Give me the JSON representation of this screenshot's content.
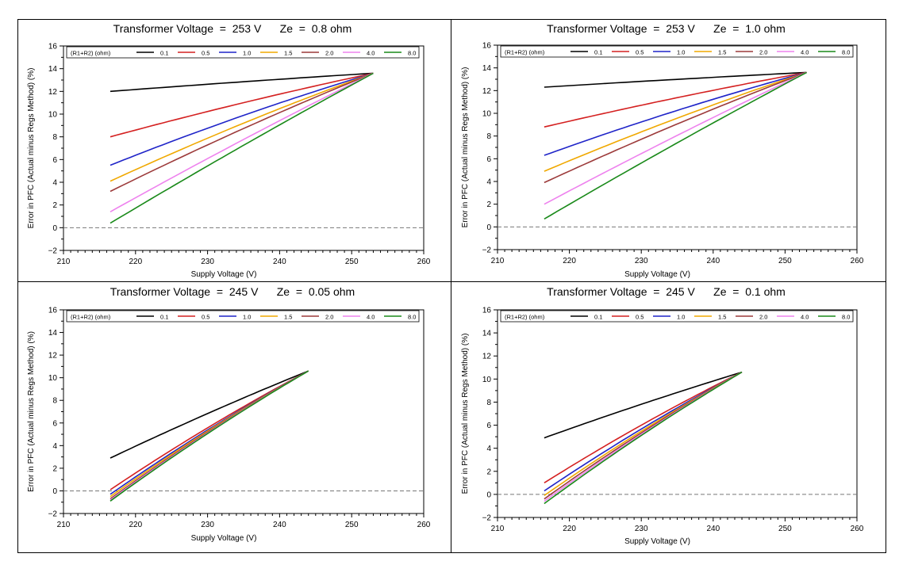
{
  "legend": {
    "title": "(R1+R2) (ohm)",
    "colors": [
      "#000000",
      "#d42020",
      "#1f24c8",
      "#f0a800",
      "#9c3a3a",
      "#ee82ee",
      "#1a8a1a"
    ]
  },
  "chart_data": [
    {
      "type": "line",
      "title": "Transformer Voltage  =  253 V      Ze  =  0.8 ohm",
      "xlabel": "Supply Voltage (V)",
      "ylabel": "Error in PFC (Actual minus Regs Method) (%)",
      "xlim": [
        210,
        260
      ],
      "ylim": [
        -2,
        16
      ],
      "xticks": [
        210,
        220,
        230,
        240,
        250,
        260
      ],
      "yticks": [
        -2,
        0,
        2,
        4,
        6,
        8,
        10,
        12,
        14,
        16
      ],
      "reference_line": 0,
      "x_start": 216.5,
      "x_end": 253,
      "y_end": 13.6,
      "series": [
        {
          "name": "0.1",
          "start": 12.0,
          "curve": 0.1
        },
        {
          "name": "0.5",
          "start": 8.0,
          "curve": 0.12
        },
        {
          "name": "1.0",
          "start": 5.5,
          "curve": 0.14
        },
        {
          "name": "1.5",
          "start": 4.1,
          "curve": 0.12
        },
        {
          "name": "2.0",
          "start": 3.2,
          "curve": 0.1
        },
        {
          "name": "4.0",
          "start": 1.4,
          "curve": 0.06
        },
        {
          "name": "8.0",
          "start": 0.4,
          "curve": 0.05
        }
      ]
    },
    {
      "type": "line",
      "title": "Transformer Voltage  =  253 V      Ze  =  1.0 ohm",
      "xlabel": "Supply Voltage (V)",
      "ylabel": "Error in PFC (Actual minus Regs Method) (%)",
      "xlim": [
        210,
        260
      ],
      "ylim": [
        -2,
        16
      ],
      "xticks": [
        210,
        220,
        230,
        240,
        250,
        260
      ],
      "yticks": [
        -2,
        0,
        2,
        4,
        6,
        8,
        10,
        12,
        14,
        16
      ],
      "reference_line": 0,
      "x_start": 216.5,
      "x_end": 253,
      "y_end": 13.6,
      "series": [
        {
          "name": "0.1",
          "start": 12.3,
          "curve": 0.1
        },
        {
          "name": "0.5",
          "start": 8.8,
          "curve": 0.12
        },
        {
          "name": "1.0",
          "start": 6.3,
          "curve": 0.14
        },
        {
          "name": "1.5",
          "start": 4.9,
          "curve": 0.12
        },
        {
          "name": "2.0",
          "start": 3.9,
          "curve": 0.1
        },
        {
          "name": "4.0",
          "start": 2.0,
          "curve": 0.06
        },
        {
          "name": "8.0",
          "start": 0.7,
          "curve": 0.05
        }
      ]
    },
    {
      "type": "line",
      "title": "Transformer Voltage  =  245 V      Ze  =  0.05 ohm",
      "xlabel": "Supply Voltage (V)",
      "ylabel": "Error in PFC (Actual minus Regs Method) (%)",
      "xlim": [
        210,
        260
      ],
      "ylim": [
        -2,
        16
      ],
      "xticks": [
        210,
        220,
        230,
        240,
        250,
        260
      ],
      "yticks": [
        -2,
        0,
        2,
        4,
        6,
        8,
        10,
        12,
        14,
        16
      ],
      "reference_line": 0,
      "x_start": 216.5,
      "x_end": 244,
      "y_end": 10.6,
      "series": [
        {
          "name": "0.1",
          "start": 2.9,
          "curve": 0.08
        },
        {
          "name": "0.5",
          "start": 0.1,
          "curve": 0.12
        },
        {
          "name": "1.0",
          "start": -0.3,
          "curve": 0.12
        },
        {
          "name": "1.5",
          "start": -0.5,
          "curve": 0.12
        },
        {
          "name": "2.0",
          "start": -0.7,
          "curve": 0.12
        },
        {
          "name": "4.0",
          "start": -0.8,
          "curve": 0.11
        },
        {
          "name": "8.0",
          "start": -0.9,
          "curve": 0.11
        }
      ]
    },
    {
      "type": "line",
      "title": "Transformer Voltage  =  245 V      Ze  =  0.1 ohm",
      "xlabel": "Supply Voltage (V)",
      "ylabel": "Error in PFC (Actual minus Regs Method) (%)",
      "xlim": [
        210,
        260
      ],
      "ylim": [
        -2,
        16
      ],
      "xticks": [
        210,
        220,
        230,
        240,
        250,
        260
      ],
      "yticks": [
        -2,
        0,
        2,
        4,
        6,
        8,
        10,
        12,
        14,
        16
      ],
      "reference_line": 0,
      "x_start": 216.5,
      "x_end": 244,
      "y_end": 10.6,
      "series": [
        {
          "name": "0.1",
          "start": 4.9,
          "curve": 0.08
        },
        {
          "name": "0.5",
          "start": 1.0,
          "curve": 0.12
        },
        {
          "name": "1.0",
          "start": 0.3,
          "curve": 0.12
        },
        {
          "name": "1.5",
          "start": -0.1,
          "curve": 0.12
        },
        {
          "name": "2.0",
          "start": -0.4,
          "curve": 0.12
        },
        {
          "name": "4.0",
          "start": -0.6,
          "curve": 0.11
        },
        {
          "name": "8.0",
          "start": -0.8,
          "curve": 0.11
        }
      ]
    }
  ]
}
